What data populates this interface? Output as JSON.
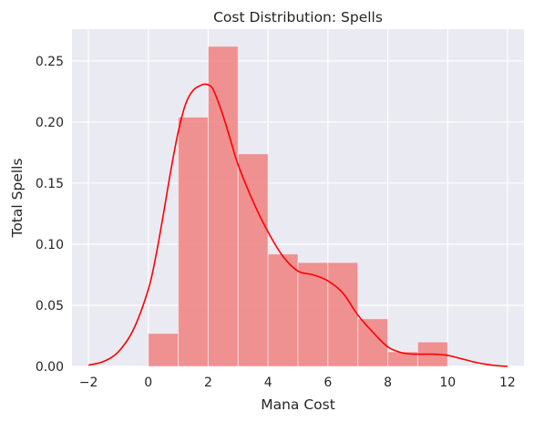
{
  "chart_data": {
    "type": "bar",
    "title": "Cost Distribution: Spells",
    "xlabel": "Mana Cost",
    "ylabel": "Total Spells",
    "xlim": [
      -2.55,
      12.55
    ],
    "ylim": [
      0,
      0.276
    ],
    "x_ticks": [
      -2,
      0,
      2,
      4,
      6,
      8,
      10,
      12
    ],
    "y_ticks": [
      0.0,
      0.05,
      0.1,
      0.15,
      0.2,
      0.25
    ],
    "grid": true,
    "histogram": {
      "bin_edges": [
        0,
        1,
        2,
        3,
        4,
        5,
        6,
        7,
        8,
        9,
        10
      ],
      "values": [
        0.027,
        0.204,
        0.262,
        0.174,
        0.092,
        0.085,
        0.085,
        0.039,
        0.012,
        0.02
      ],
      "color": "#f08080"
    },
    "kde": {
      "color": "#ff0000",
      "x": [
        -2.0,
        -1.5,
        -1.0,
        -0.5,
        0.0,
        0.25,
        0.5,
        0.75,
        1.0,
        1.25,
        1.5,
        1.75,
        1.9,
        2.1,
        2.25,
        2.5,
        2.75,
        3.0,
        3.5,
        4.0,
        4.5,
        5.0,
        5.5,
        6.0,
        6.5,
        7.0,
        7.5,
        8.0,
        8.5,
        9.0,
        9.5,
        10.0,
        10.5,
        11.0,
        11.5,
        12.0
      ],
      "y": [
        0.001,
        0.004,
        0.012,
        0.03,
        0.063,
        0.09,
        0.124,
        0.16,
        0.192,
        0.215,
        0.226,
        0.23,
        0.231,
        0.229,
        0.222,
        0.205,
        0.185,
        0.165,
        0.135,
        0.11,
        0.09,
        0.078,
        0.075,
        0.07,
        0.06,
        0.042,
        0.028,
        0.016,
        0.011,
        0.01,
        0.01,
        0.009,
        0.006,
        0.003,
        0.001,
        0.0
      ]
    }
  }
}
